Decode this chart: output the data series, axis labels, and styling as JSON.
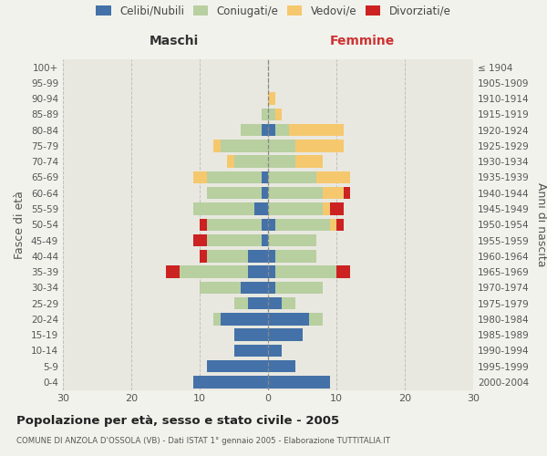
{
  "age_groups": [
    "0-4",
    "5-9",
    "10-14",
    "15-19",
    "20-24",
    "25-29",
    "30-34",
    "35-39",
    "40-44",
    "45-49",
    "50-54",
    "55-59",
    "60-64",
    "65-69",
    "70-74",
    "75-79",
    "80-84",
    "85-89",
    "90-94",
    "95-99",
    "100+"
  ],
  "birth_years": [
    "2000-2004",
    "1995-1999",
    "1990-1994",
    "1985-1989",
    "1980-1984",
    "1975-1979",
    "1970-1974",
    "1965-1969",
    "1960-1964",
    "1955-1959",
    "1950-1954",
    "1945-1949",
    "1940-1944",
    "1935-1939",
    "1930-1934",
    "1925-1929",
    "1920-1924",
    "1915-1919",
    "1910-1914",
    "1905-1909",
    "≤ 1904"
  ],
  "male_celibe": [
    11,
    9,
    5,
    5,
    7,
    3,
    4,
    3,
    3,
    1,
    1,
    2,
    1,
    1,
    0,
    0,
    1,
    0,
    0,
    0,
    0
  ],
  "male_coniugato": [
    0,
    0,
    0,
    0,
    1,
    2,
    6,
    10,
    6,
    8,
    8,
    9,
    8,
    8,
    5,
    7,
    3,
    1,
    0,
    0,
    0
  ],
  "male_vedovo": [
    0,
    0,
    0,
    0,
    0,
    0,
    0,
    0,
    0,
    0,
    0,
    0,
    0,
    2,
    1,
    1,
    0,
    0,
    0,
    0,
    0
  ],
  "male_divorziato": [
    0,
    0,
    0,
    0,
    0,
    0,
    0,
    2,
    1,
    2,
    1,
    0,
    0,
    0,
    0,
    0,
    0,
    0,
    0,
    0,
    0
  ],
  "female_celibe": [
    9,
    4,
    2,
    5,
    6,
    2,
    1,
    1,
    1,
    0,
    1,
    0,
    0,
    0,
    0,
    0,
    1,
    0,
    0,
    0,
    0
  ],
  "female_coniugato": [
    0,
    0,
    0,
    0,
    2,
    2,
    7,
    9,
    6,
    7,
    8,
    8,
    8,
    7,
    4,
    4,
    2,
    1,
    0,
    0,
    0
  ],
  "female_vedovo": [
    0,
    0,
    0,
    0,
    0,
    0,
    0,
    0,
    0,
    0,
    1,
    1,
    3,
    5,
    4,
    7,
    8,
    1,
    1,
    0,
    0
  ],
  "female_divorziato": [
    0,
    0,
    0,
    0,
    0,
    0,
    0,
    2,
    0,
    0,
    1,
    2,
    1,
    0,
    0,
    0,
    0,
    0,
    0,
    0,
    0
  ],
  "color_celibe": "#4472a8",
  "color_coniugato": "#b8cfa0",
  "color_vedovo": "#f5c86e",
  "color_divorziato": "#cc2222",
  "title": "Popolazione per età, sesso e stato civile - 2005",
  "subtitle": "COMUNE DI ANZOLA D'OSSOLA (VB) - Dati ISTAT 1° gennaio 2005 - Elaborazione TUTTITALIA.IT",
  "ylabel_left": "Fasce di età",
  "ylabel_right": "Anni di nascita",
  "label_maschi": "Maschi",
  "label_femmine": "Femmine",
  "legend_labels": [
    "Celibi/Nubili",
    "Coniugati/e",
    "Vedovi/e",
    "Divorziati/e"
  ],
  "xlim": 30,
  "background_color": "#f2f2ec",
  "plot_bg": "#e8e8e0"
}
